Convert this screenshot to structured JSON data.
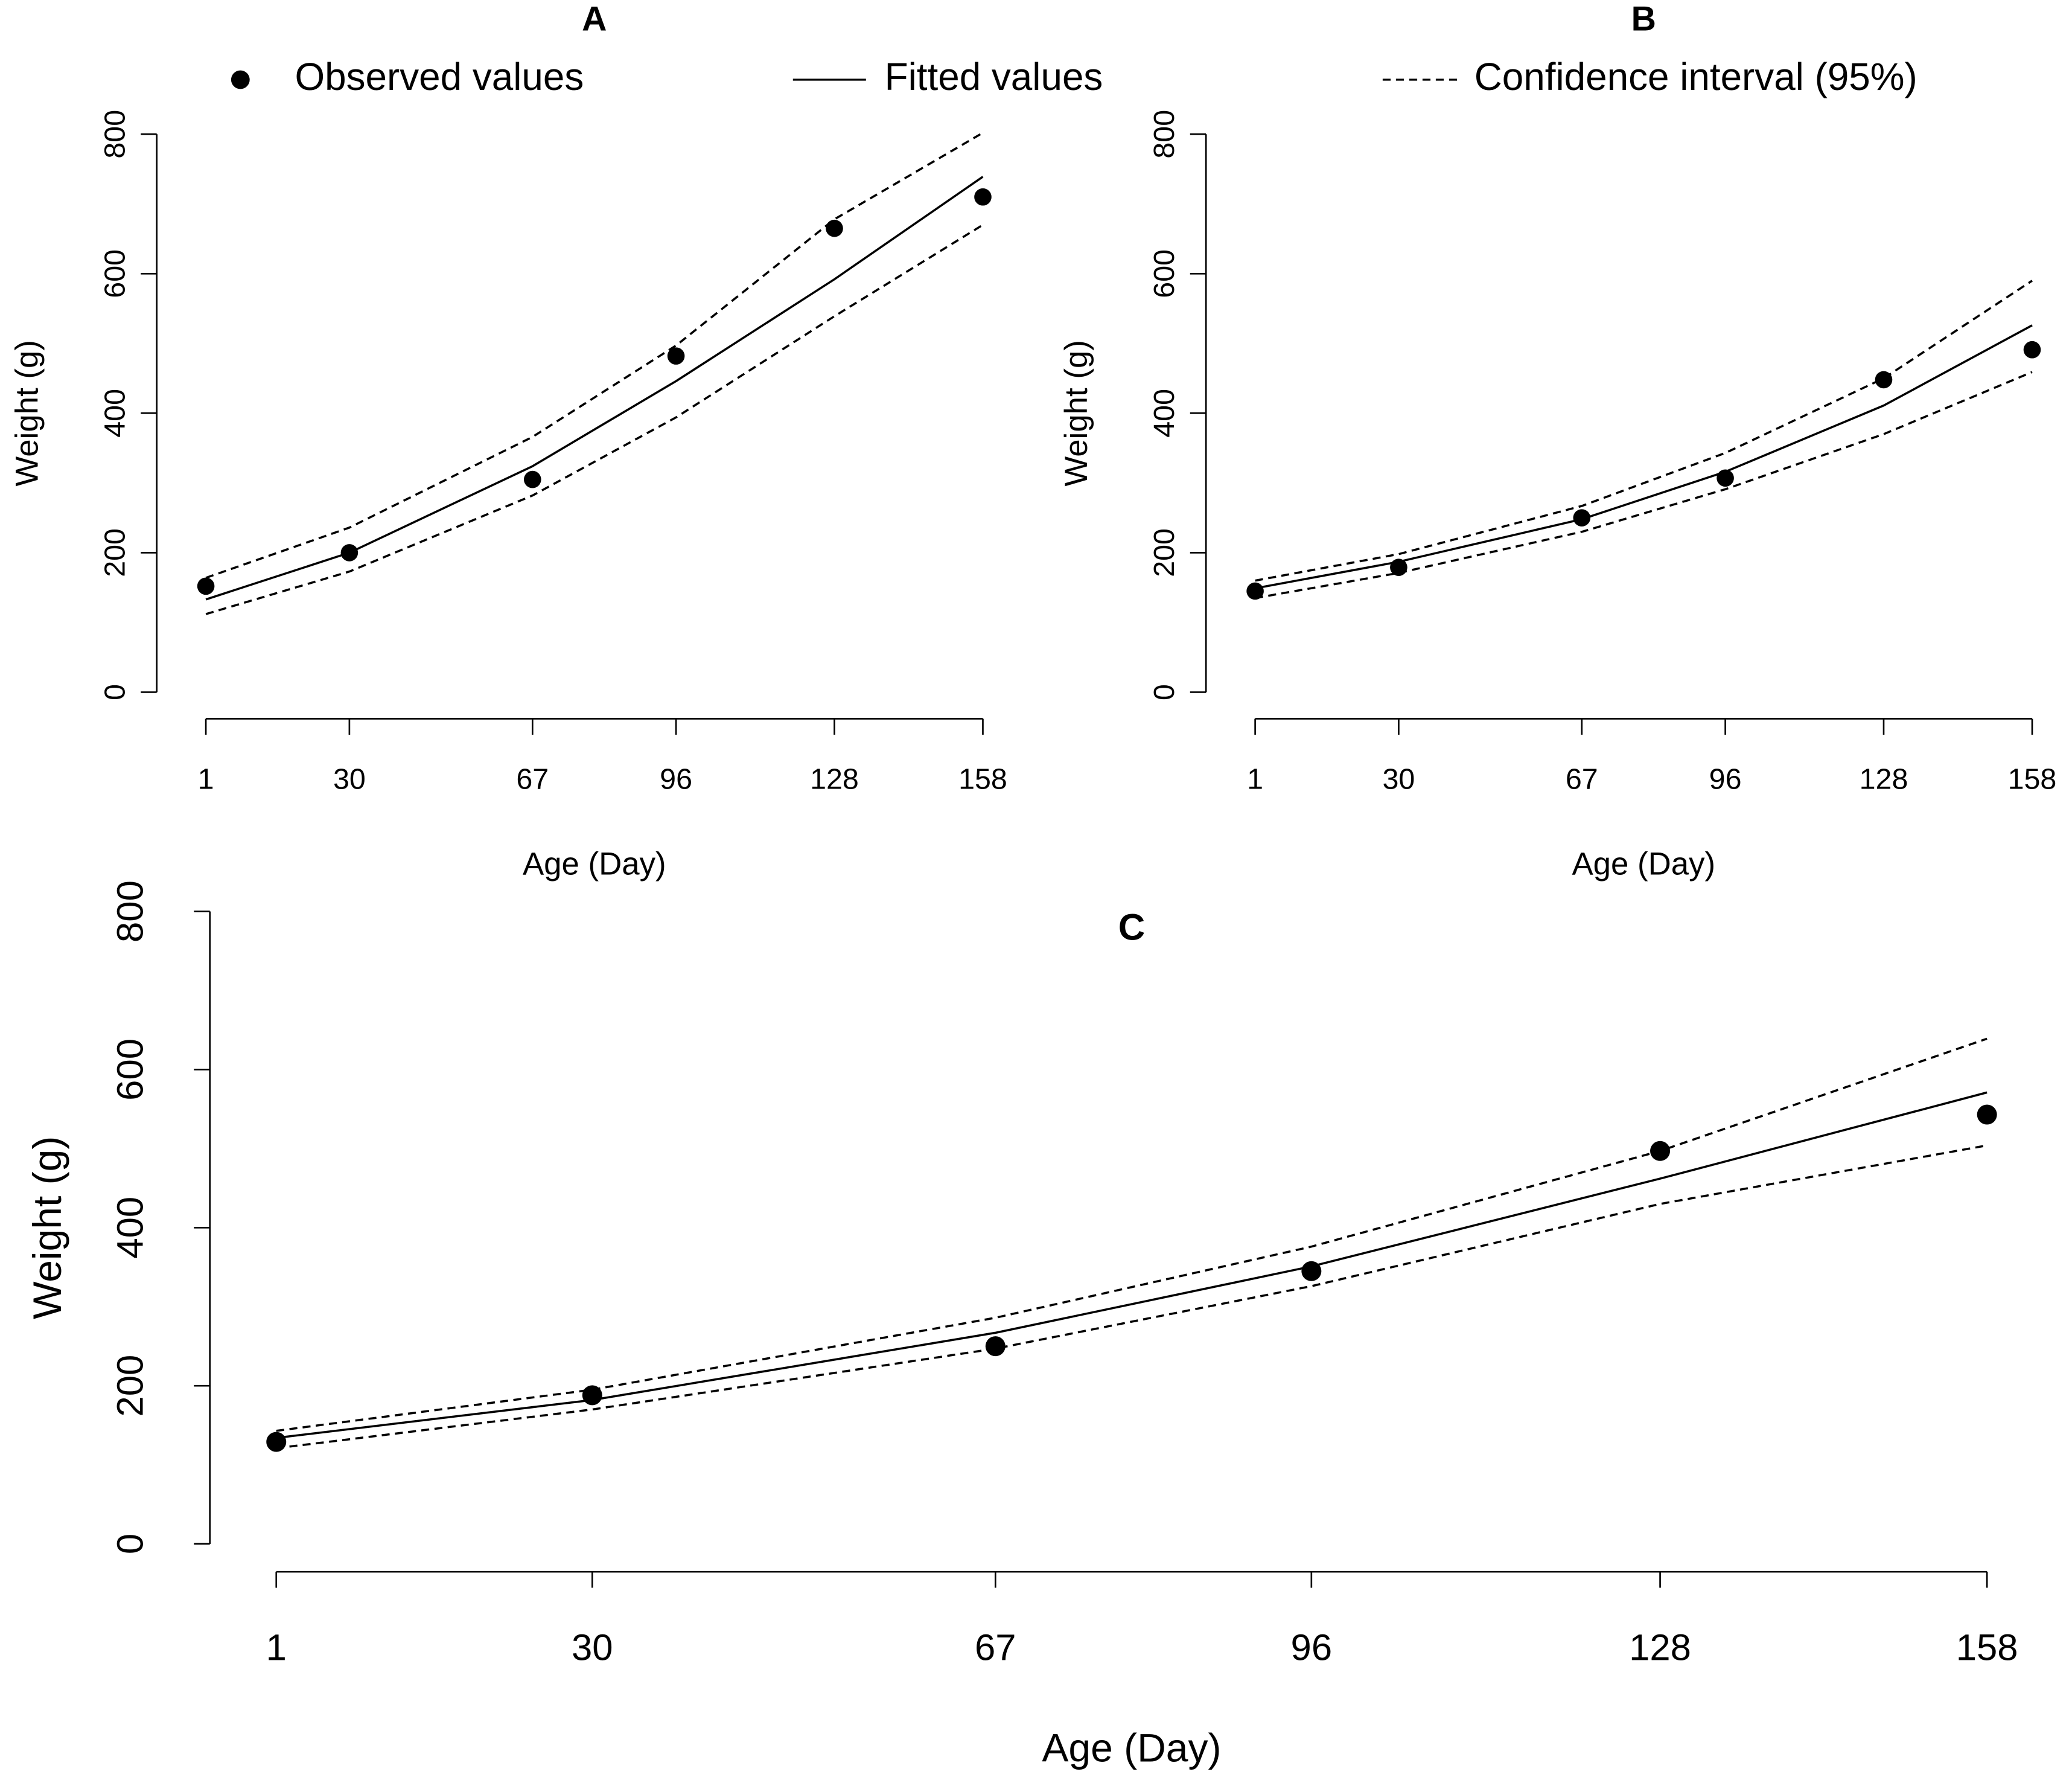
{
  "legend": [
    "Observed values",
    "Fitted values",
    "Confidence interval (95%)"
  ],
  "chart_data": [
    {
      "type": "line",
      "title": "A",
      "xlabel": "Age (Day)",
      "ylabel": "Weight (g)",
      "x": [
        1,
        30,
        67,
        96,
        128,
        158
      ],
      "xlim": [
        1,
        158
      ],
      "xticks": [
        1,
        30,
        67,
        96,
        128,
        158
      ],
      "ylim": [
        0,
        800
      ],
      "yticks": [
        0,
        200,
        400,
        600,
        800
      ],
      "series": [
        {
          "style": "points",
          "color": "#000000",
          "values": [
            152,
            200,
            305,
            482,
            665,
            710
          ]
        },
        {
          "style": "solid",
          "color": "#000000",
          "values": [
            133,
            200,
            324,
            446,
            592,
            739
          ]
        },
        {
          "style": "dashed",
          "color": "#000000",
          "lower": [
            112,
            173,
            282,
            394,
            539,
            670
          ],
          "upper": [
            164,
            236,
            366,
            497,
            678,
            802
          ]
        }
      ]
    },
    {
      "type": "line",
      "title": "B",
      "xlabel": "Age (Day)",
      "ylabel": "Weight (g)",
      "x": [
        1,
        30,
        67,
        96,
        128,
        158
      ],
      "xlim": [
        1,
        158
      ],
      "xticks": [
        1,
        30,
        67,
        96,
        128,
        158
      ],
      "ylim": [
        0,
        800
      ],
      "yticks": [
        0,
        200,
        400,
        600,
        800
      ],
      "series": [
        {
          "style": "points",
          "color": "#000000",
          "values": [
            145,
            179,
            250,
            307,
            448,
            491
          ]
        },
        {
          "style": "solid",
          "color": "#000000",
          "values": [
            149,
            187,
            248,
            316,
            411,
            526
          ]
        },
        {
          "style": "dashed",
          "color": "#000000",
          "lower": [
            135,
            171,
            230,
            291,
            370,
            459
          ],
          "upper": [
            160,
            198,
            267,
            343,
            450,
            590
          ]
        }
      ]
    },
    {
      "type": "line",
      "title": "C",
      "xlabel": "Age (Day)",
      "ylabel": "Weight (g)",
      "x": [
        1,
        30,
        67,
        96,
        128,
        158
      ],
      "xlim": [
        1,
        158
      ],
      "xticks": [
        1,
        30,
        67,
        96,
        128,
        158
      ],
      "ylim": [
        0,
        800
      ],
      "yticks": [
        0,
        200,
        400,
        600,
        800
      ],
      "series": [
        {
          "style": "points",
          "color": "#000000",
          "values": [
            129,
            188,
            250,
            345,
            497,
            543
          ]
        },
        {
          "style": "solid",
          "color": "#000000",
          "values": [
            134,
            182,
            267,
            351,
            462,
            571
          ]
        },
        {
          "style": "dashed",
          "color": "#000000",
          "lower": [
            121,
            170,
            247,
            326,
            430,
            504
          ],
          "upper": [
            143,
            195,
            286,
            376,
            497,
            639
          ]
        }
      ]
    }
  ]
}
